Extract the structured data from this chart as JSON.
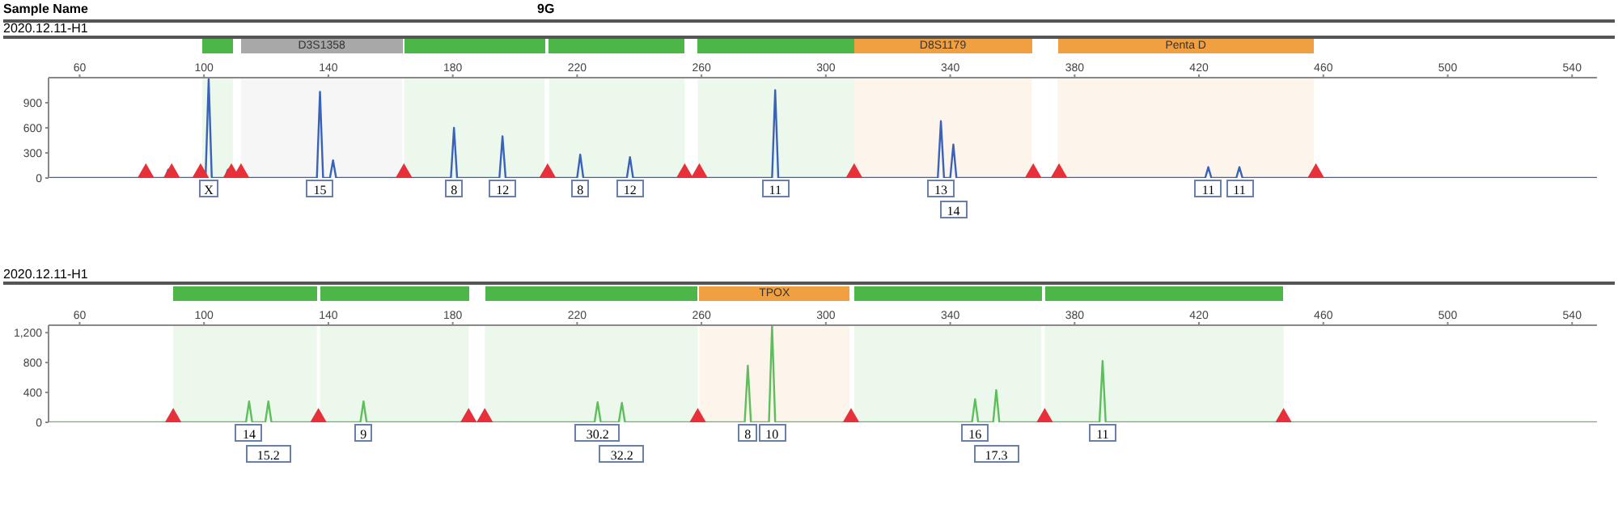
{
  "chart_data": [
    {
      "type": "line",
      "title": "2020.12.11-H1",
      "marker": "none",
      "xlim": [
        50,
        548
      ],
      "xticks": [
        60,
        100,
        140,
        180,
        220,
        260,
        300,
        340,
        380,
        420,
        460,
        500,
        540
      ],
      "ylim": [
        0,
        1200
      ],
      "yticks": [
        0,
        300,
        600,
        900
      ],
      "annotations": [
        "Sample Name",
        "9G",
        {
          "text": "X",
          "x": 101.5,
          "y": 0
        },
        {
          "text": "15",
          "x": 137.3,
          "y": 0
        },
        {
          "text": "8",
          "x": 180.4,
          "y": 0
        },
        {
          "text": "12",
          "x": 196,
          "y": 0
        },
        {
          "text": "8",
          "x": 221,
          "y": 0
        },
        {
          "text": "12",
          "x": 237,
          "y": 0
        },
        {
          "text": "11",
          "x": 283.7,
          "y": 0
        },
        {
          "text": "13",
          "x": 337,
          "y": 0
        },
        {
          "text": "14",
          "x": 341,
          "y": 0
        },
        {
          "text": "11",
          "x": 423,
          "y": 0
        },
        {
          "text": "11",
          "x": 433,
          "y": 0
        }
      ],
      "bands": [
        {
          "axis": "x",
          "from": 99.4,
          "to": 109.3,
          "label": null,
          "color": "#4cb648"
        },
        {
          "axis": "x",
          "from": 111.9,
          "to": 163.8,
          "label": "D3S1358",
          "color": "#a8a8a8"
        },
        {
          "axis": "x",
          "from": 164.3,
          "to": 209.5,
          "label": null,
          "color": "#4cb648"
        },
        {
          "axis": "x",
          "from": 211,
          "to": 254.6,
          "label": null,
          "color": "#4cb648"
        },
        {
          "axis": "x",
          "from": 258.8,
          "to": 309.1,
          "label": null,
          "color": "#4cb648"
        },
        {
          "axis": "x",
          "from": 309.1,
          "to": 366.2,
          "label": "D8S1179",
          "color": "#f0a040"
        },
        {
          "axis": "x",
          "from": 374.5,
          "to": 457,
          "label": "Penta D",
          "color": "#f0a040"
        }
      ],
      "series": [
        {
          "color": "#3a62b8",
          "x": [
            50,
            87.5,
            88.5,
            89.5,
            100.5,
            101.5,
            102.5,
            106.7,
            107.7,
            108.7,
            136.3,
            137.3,
            138.3,
            140.5,
            141.5,
            142.5,
            179.4,
            180.4,
            181.4,
            195,
            196,
            197,
            220,
            221,
            222,
            236,
            237,
            238,
            282.7,
            283.7,
            284.7,
            336,
            337,
            338,
            340,
            341,
            342,
            422,
            423,
            424,
            432,
            433,
            434,
            548
          ],
          "values": [
            0,
            0,
            100,
            0,
            0,
            1180,
            0,
            0,
            100,
            0,
            0,
            1030,
            0,
            0,
            210,
            0,
            0,
            600,
            0,
            0,
            500,
            0,
            0,
            280,
            0,
            0,
            250,
            0,
            0,
            1050,
            0,
            0,
            680,
            0,
            0,
            400,
            0,
            0,
            130,
            0,
            0,
            130,
            0,
            0
          ]
        },
        {
          "type": "scatter",
          "color": "#e8303a",
          "marker": "triangle",
          "x": [
            81.3,
            89.6,
            98.9,
            108.8,
            111.9,
            164.3,
            210.5,
            254.6,
            259.3,
            309.1,
            366.7,
            375,
            457.6
          ],
          "values": [
            40,
            40,
            40,
            40,
            40,
            40,
            40,
            40,
            40,
            40,
            40,
            40,
            40
          ]
        }
      ]
    },
    {
      "type": "line",
      "title": "2020.12.11-H1",
      "marker": "none",
      "xlim": [
        50,
        548
      ],
      "xticks": [
        60,
        100,
        140,
        180,
        220,
        260,
        300,
        340,
        380,
        420,
        460,
        500,
        540
      ],
      "ylim": [
        0,
        1300
      ],
      "yticks": [
        0,
        400,
        800,
        {
          "value": 1200,
          "label": "1,200"
        }
      ],
      "annotations": [
        {
          "text": "14",
          "x": 114.5,
          "y": 0
        },
        {
          "text": "15.2",
          "x": 120.7,
          "y": 0
        },
        {
          "text": "9",
          "x": 151.3,
          "y": 0
        },
        {
          "text": "30.2",
          "x": 226.6,
          "y": 0
        },
        {
          "text": "32.2",
          "x": 234.4,
          "y": 0
        },
        {
          "text": "8",
          "x": 274.9,
          "y": 0
        },
        {
          "text": "10",
          "x": 282.7,
          "y": 0
        },
        {
          "text": "16",
          "x": 348,
          "y": 0
        },
        {
          "text": "17.3",
          "x": 354.8,
          "y": 0
        },
        {
          "text": "11",
          "x": 389,
          "y": 0
        }
      ],
      "bands": [
        {
          "axis": "x",
          "from": 90.1,
          "to": 136.3,
          "label": null,
          "color": "#4cb648"
        },
        {
          "axis": "x",
          "from": 137.3,
          "to": 185.1,
          "label": null,
          "color": "#4cb648"
        },
        {
          "axis": "x",
          "from": 190.3,
          "to": 258.8,
          "label": null,
          "color": "#4cb648"
        },
        {
          "axis": "x",
          "from": 259.3,
          "to": 307.6,
          "label": "TPOX",
          "color": "#f0a040"
        },
        {
          "axis": "x",
          "from": 309.1,
          "to": 369.3,
          "label": null,
          "color": "#4cb648"
        },
        {
          "axis": "x",
          "from": 370.4,
          "to": 447.2,
          "label": null,
          "color": "#4cb648"
        }
      ],
      "series": [
        {
          "color": "#5cbf5c",
          "x": [
            50,
            113.5,
            114.5,
            115.5,
            119.7,
            120.7,
            121.7,
            150.3,
            151.3,
            152.3,
            225.6,
            226.6,
            227.6,
            233.4,
            234.4,
            235.4,
            273.9,
            274.9,
            275.9,
            281.7,
            282.7,
            283.7,
            347,
            348,
            349,
            353.8,
            354.8,
            355.8,
            388,
            389,
            390,
            548
          ],
          "values": [
            0,
            0,
            280,
            0,
            0,
            280,
            0,
            0,
            280,
            0,
            0,
            270,
            0,
            0,
            260,
            0,
            0,
            760,
            0,
            0,
            1300,
            0,
            0,
            310,
            0,
            0,
            430,
            0,
            0,
            820,
            0,
            0
          ]
        },
        {
          "type": "scatter",
          "color": "#e8303a",
          "marker": "triangle",
          "x": [
            90.1,
            136.8,
            185.1,
            190.3,
            258.8,
            308.1,
            370.4,
            447.2
          ],
          "values": [
            40,
            40,
            40,
            40,
            40,
            40,
            40,
            40
          ]
        }
      ]
    }
  ]
}
